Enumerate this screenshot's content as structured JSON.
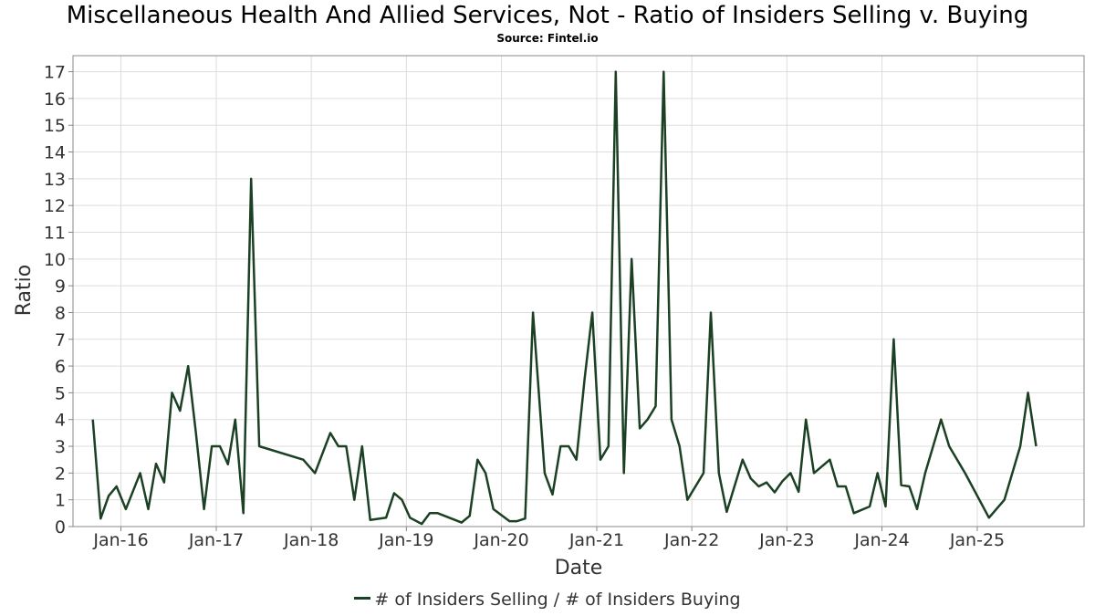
{
  "title": "Miscellaneous Health And Allied Services, Not - Ratio of Insiders Selling v. Buying",
  "subtitle": "Source: Fintel.io",
  "colors": {
    "line": "#1b4023",
    "grid": "#dddddd",
    "frame": "#888888"
  },
  "chart_data": {
    "type": "line",
    "title": "Miscellaneous Health And Allied Services, Not - Ratio of Insiders Selling v. Buying",
    "subtitle": "Source: Fintel.io",
    "xlabel": "Date",
    "ylabel": "Ratio",
    "x_tick_labels": [
      "Jan-16",
      "Jan-17",
      "Jan-18",
      "Jan-19",
      "Jan-20",
      "Jan-21",
      "Jan-22",
      "Jan-23",
      "Jan-24",
      "Jan-25"
    ],
    "x_tick_dates": [
      "2016-01-01",
      "2017-01-01",
      "2018-01-01",
      "2019-01-01",
      "2020-01-01",
      "2021-01-01",
      "2022-01-01",
      "2023-01-01",
      "2024-01-01",
      "2025-01-01"
    ],
    "xlim": [
      "2015-07-01",
      "2026-02-15"
    ],
    "ylim": [
      0,
      17.6
    ],
    "y_ticks": [
      0,
      1,
      2,
      3,
      4,
      5,
      6,
      7,
      8,
      9,
      10,
      11,
      12,
      13,
      14,
      15,
      16,
      17
    ],
    "grid": true,
    "legend_position": "bottom-center",
    "series": [
      {
        "name": "# of Insiders Selling / # of Insiders Buying",
        "points": [
          [
            "2015-09-15",
            4.0
          ],
          [
            "2015-10-15",
            0.3
          ],
          [
            "2015-11-15",
            1.15
          ],
          [
            "2015-12-15",
            1.5
          ],
          [
            "2016-01-20",
            0.65
          ],
          [
            "2016-03-15",
            2.0
          ],
          [
            "2016-04-15",
            0.65
          ],
          [
            "2016-05-15",
            2.35
          ],
          [
            "2016-06-15",
            1.65
          ],
          [
            "2016-07-15",
            5.0
          ],
          [
            "2016-08-15",
            4.33
          ],
          [
            "2016-09-15",
            6.0
          ],
          [
            "2016-10-15",
            3.5
          ],
          [
            "2016-11-15",
            0.65
          ],
          [
            "2016-12-15",
            3.0
          ],
          [
            "2017-01-15",
            3.0
          ],
          [
            "2017-02-15",
            2.33
          ],
          [
            "2017-03-15",
            4.0
          ],
          [
            "2017-04-15",
            0.5
          ],
          [
            "2017-05-15",
            13.0
          ],
          [
            "2017-06-15",
            3.0
          ],
          [
            "2017-12-01",
            2.5
          ],
          [
            "2018-01-15",
            2.0
          ],
          [
            "2018-03-15",
            3.5
          ],
          [
            "2018-04-15",
            3.0
          ],
          [
            "2018-05-15",
            3.0
          ],
          [
            "2018-06-15",
            1.0
          ],
          [
            "2018-07-15",
            3.0
          ],
          [
            "2018-08-15",
            0.25
          ],
          [
            "2018-10-15",
            0.33
          ],
          [
            "2018-11-15",
            1.25
          ],
          [
            "2018-12-15",
            1.0
          ],
          [
            "2019-01-15",
            0.33
          ],
          [
            "2019-03-01",
            0.1
          ],
          [
            "2019-04-01",
            0.5
          ],
          [
            "2019-05-01",
            0.5
          ],
          [
            "2019-08-01",
            0.15
          ],
          [
            "2019-09-01",
            0.4
          ],
          [
            "2019-10-01",
            2.5
          ],
          [
            "2019-11-01",
            2.0
          ],
          [
            "2019-12-01",
            0.65
          ],
          [
            "2020-02-01",
            0.2
          ],
          [
            "2020-03-01",
            0.2
          ],
          [
            "2020-04-01",
            0.3
          ],
          [
            "2020-05-01",
            8.0
          ],
          [
            "2020-06-15",
            2.0
          ],
          [
            "2020-07-15",
            1.2
          ],
          [
            "2020-08-15",
            3.0
          ],
          [
            "2020-09-15",
            3.0
          ],
          [
            "2020-10-15",
            2.5
          ],
          [
            "2020-11-15",
            5.5
          ],
          [
            "2020-12-15",
            8.0
          ],
          [
            "2021-01-15",
            2.5
          ],
          [
            "2021-02-15",
            3.0
          ],
          [
            "2021-03-15",
            17.0
          ],
          [
            "2021-04-15",
            2.0
          ],
          [
            "2021-05-15",
            10.0
          ],
          [
            "2021-06-15",
            3.67
          ],
          [
            "2021-07-15",
            4.0
          ],
          [
            "2021-08-15",
            4.5
          ],
          [
            "2021-09-15",
            17.0
          ],
          [
            "2021-10-15",
            4.0
          ],
          [
            "2021-11-15",
            3.0
          ],
          [
            "2021-12-15",
            1.0
          ],
          [
            "2022-02-15",
            2.0
          ],
          [
            "2022-03-15",
            8.0
          ],
          [
            "2022-04-15",
            2.0
          ],
          [
            "2022-05-15",
            0.55
          ],
          [
            "2022-07-15",
            2.5
          ],
          [
            "2022-08-15",
            1.8
          ],
          [
            "2022-09-15",
            1.5
          ],
          [
            "2022-10-15",
            1.65
          ],
          [
            "2022-11-15",
            1.28
          ],
          [
            "2022-12-15",
            1.7
          ],
          [
            "2023-01-15",
            2.0
          ],
          [
            "2023-02-15",
            1.3
          ],
          [
            "2023-03-15",
            4.0
          ],
          [
            "2023-04-15",
            2.0
          ],
          [
            "2023-06-15",
            2.5
          ],
          [
            "2023-07-15",
            1.5
          ],
          [
            "2023-08-15",
            1.5
          ],
          [
            "2023-09-15",
            0.5
          ],
          [
            "2023-11-15",
            0.75
          ],
          [
            "2023-12-15",
            2.0
          ],
          [
            "2024-01-15",
            0.75
          ],
          [
            "2024-02-15",
            7.0
          ],
          [
            "2024-03-15",
            1.55
          ],
          [
            "2024-04-15",
            1.5
          ],
          [
            "2024-05-15",
            0.65
          ],
          [
            "2024-06-15",
            2.0
          ],
          [
            "2024-08-15",
            4.0
          ],
          [
            "2024-09-15",
            3.0
          ],
          [
            "2024-11-15",
            2.0
          ],
          [
            "2025-02-15",
            0.33
          ],
          [
            "2025-04-15",
            1.0
          ],
          [
            "2025-06-15",
            3.0
          ],
          [
            "2025-07-15",
            5.0
          ],
          [
            "2025-08-15",
            3.0
          ]
        ]
      }
    ]
  }
}
